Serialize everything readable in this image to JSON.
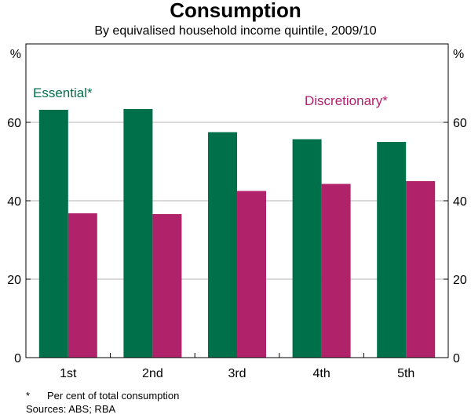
{
  "chart_data": {
    "type": "bar",
    "title": "Consumption",
    "subtitle": "By equivalised household income quintile, 2009/10",
    "categories": [
      "1st",
      "2nd",
      "3rd",
      "4th",
      "5th"
    ],
    "series": [
      {
        "name": "Essential*",
        "color": "#00704a",
        "values": [
          63.2,
          63.4,
          57.5,
          55.7,
          55.0
        ]
      },
      {
        "name": "Discretionary*",
        "color": "#b0236b",
        "values": [
          36.8,
          36.6,
          42.5,
          44.3,
          45.0
        ]
      }
    ],
    "ylim": [
      0,
      80
    ],
    "yticks": [
      0,
      20,
      40,
      60
    ],
    "ylabel_left": "%",
    "ylabel_right": "%",
    "grid": true
  },
  "footnote": {
    "marker": "*",
    "text": "Per cent of total consumption"
  },
  "sources": "Sources: ABS; RBA"
}
